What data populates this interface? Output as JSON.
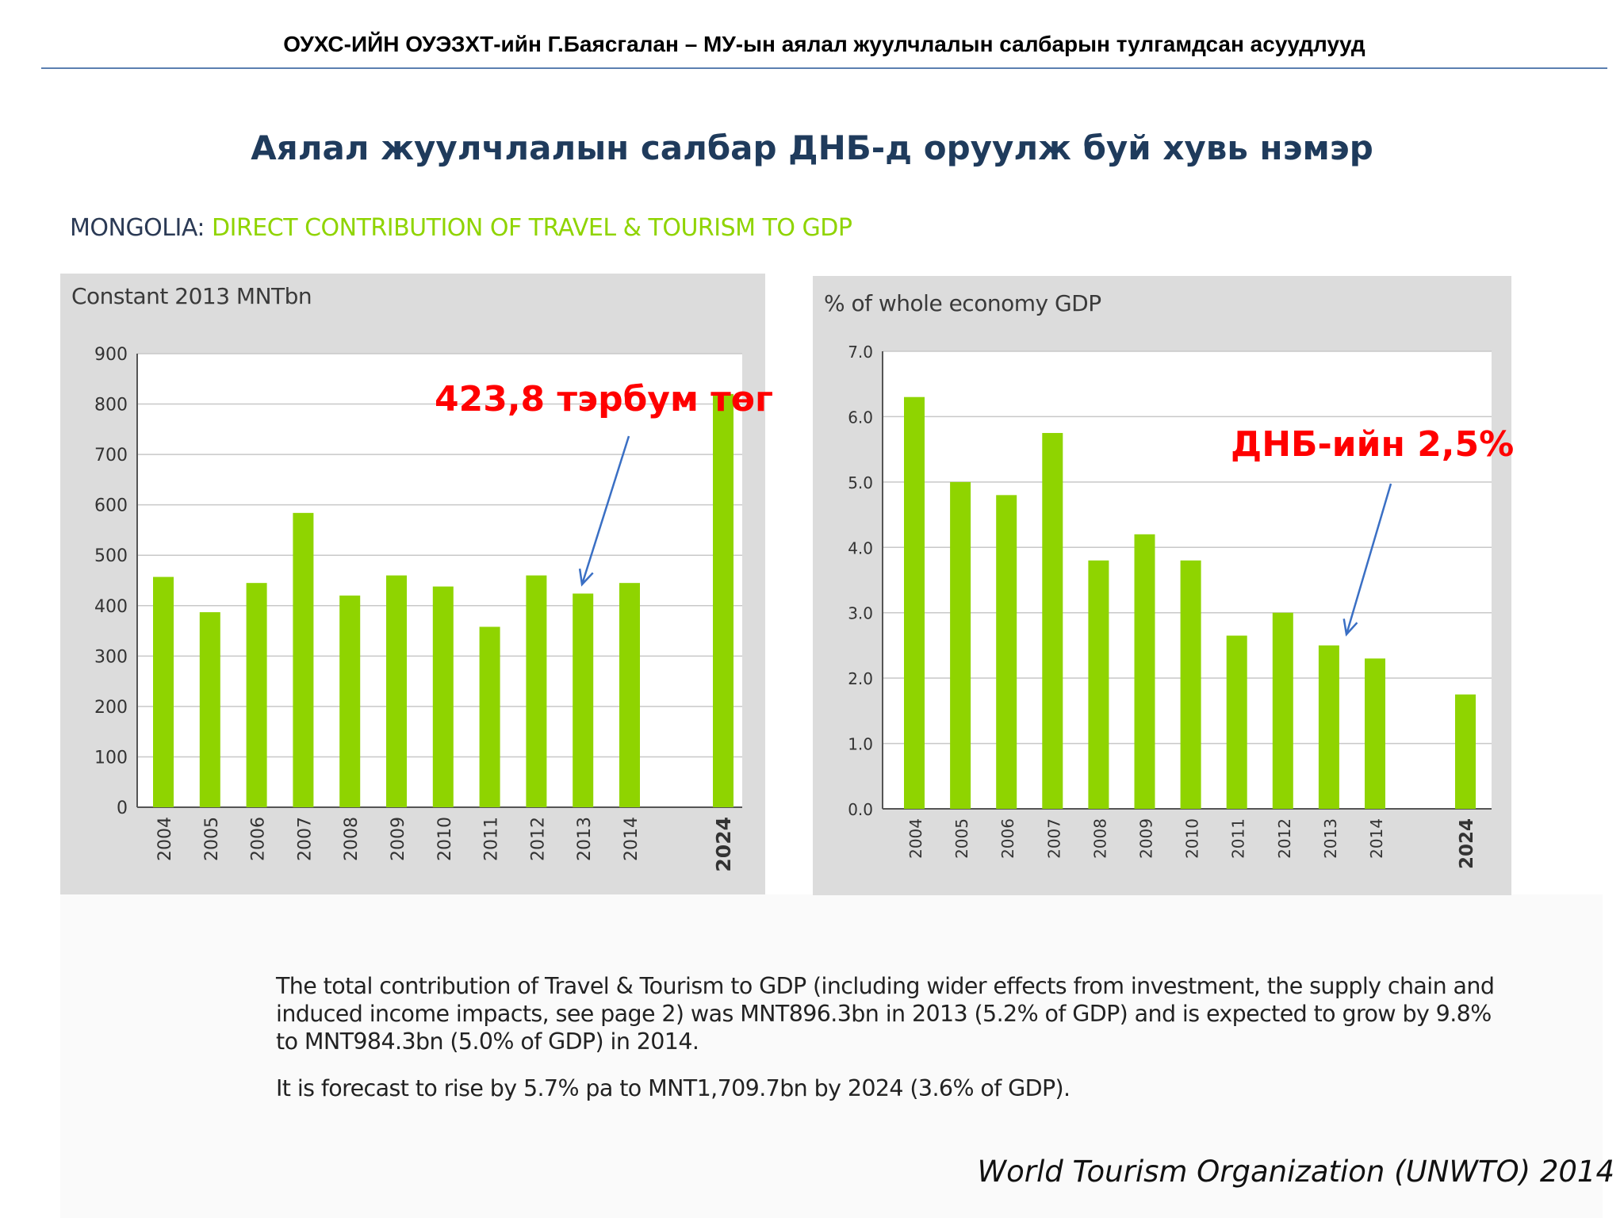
{
  "header": {
    "title": "ОУХС-ИЙН ОУЭЗХТ-ийн Г.Баясгалан – МУ-ын аялал жуулчлалын салбарын тулгамдсан асуудлууд"
  },
  "slide_title": "Аялал жуулчлалын салбар ДНБ-д оруулж буй хувь нэмэр",
  "report_heading": {
    "country": "MONGOLIA:",
    "subject": "DIRECT CONTRIBUTION OF  TRAVEL & TOURISM TO GDP"
  },
  "colors": {
    "bar": "#8fd400",
    "panel_bg": "#dcdcdc",
    "plot_bg": "#ffffff",
    "annotation": "#ff0000",
    "arrow": "#3a6fc4"
  },
  "annotations": {
    "left": "423,8 тэрбум төг",
    "right": "ДНБ-ийн 2,5%"
  },
  "notes": {
    "paragraph1": "The total contribution of Travel & Tourism to GDP (including wider effects from investment, the supply chain and induced income impacts, see page 2) was  MNT896.3bn in 2013 (5.2% of GDP) and is expected to grow by 9.8% to MNT984.3bn (5.0% of GDP) in 2014.",
    "paragraph2": "It is forecast to rise by 5.7% pa to MNT1,709.7bn by 2024 (3.6% of GDP)."
  },
  "source": "World Tourism Organization (UNWTO) 2014",
  "chart_data": [
    {
      "type": "bar",
      "title": "Constant 2013 MNTbn",
      "categories": [
        "2004",
        "2005",
        "2006",
        "2007",
        "2008",
        "2009",
        "2010",
        "2011",
        "2012",
        "2013",
        "2014",
        "2024"
      ],
      "bold_categories": [
        "2024"
      ],
      "values": [
        457,
        387,
        445,
        584,
        420,
        460,
        438,
        358,
        460,
        424,
        445,
        820
      ],
      "ylim": [
        0,
        900
      ],
      "yticks": [
        "0",
        "100",
        "200",
        "300",
        "400",
        "500",
        "600",
        "700",
        "800",
        "900"
      ],
      "grid": true,
      "annotation": "423,8 тэрбум төг",
      "annotation_target": "2013"
    },
    {
      "type": "bar",
      "title": "% of whole economy GDP",
      "categories": [
        "2004",
        "2005",
        "2006",
        "2007",
        "2008",
        "2009",
        "2010",
        "2011",
        "2012",
        "2013",
        "2014",
        "2024"
      ],
      "bold_categories": [
        "2024"
      ],
      "values": [
        6.3,
        5.0,
        4.8,
        5.75,
        3.8,
        4.2,
        3.8,
        2.65,
        3.0,
        2.5,
        2.3,
        1.75
      ],
      "ylim": [
        0,
        7
      ],
      "yticks": [
        "0.0",
        "1.0",
        "2.0",
        "3.0",
        "4.0",
        "5.0",
        "6.0",
        "7.0"
      ],
      "grid": true,
      "annotation": "ДНБ-ийн 2,5%",
      "annotation_target": "2013"
    }
  ]
}
